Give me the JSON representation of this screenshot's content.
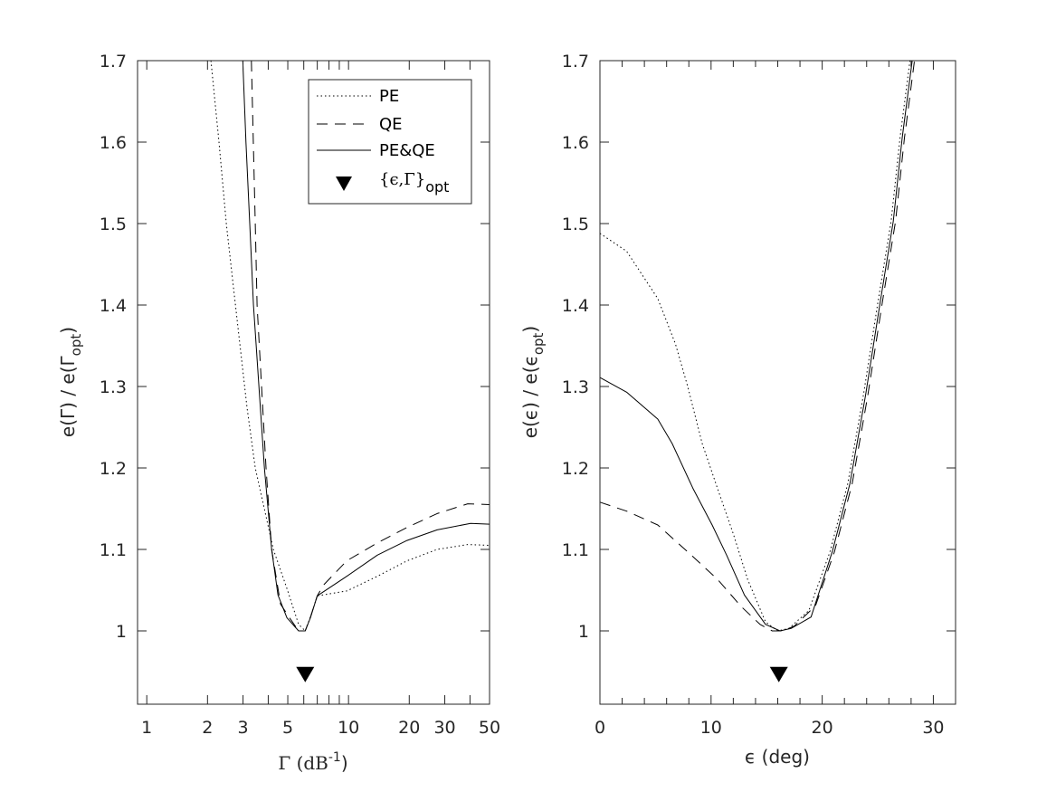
{
  "chart_data": [
    {
      "type": "line",
      "xscale": "log",
      "xlim": [
        0.9,
        50
      ],
      "ylim": [
        0.91,
        1.7
      ],
      "xticks": [
        1,
        2,
        3,
        5,
        10,
        20,
        30,
        50
      ],
      "xticklabels": [
        "1",
        "2",
        "3",
        "5",
        "10",
        "20",
        "30",
        "50"
      ],
      "xminor": [
        4,
        6,
        7,
        8,
        9,
        40
      ],
      "yticks": [
        1,
        1.1,
        1.2,
        1.3,
        1.4,
        1.5,
        1.6,
        1.7
      ],
      "yticklabels": [
        "1",
        "1.1",
        "1.2",
        "1.3",
        "1.4",
        "1.5",
        "1.6",
        "1.7"
      ],
      "xlabel": {
        "main": "Γ (dB",
        "sup": "-1",
        "end": ")"
      },
      "ylabel": {
        "main": "e(Γ) / e(Γ",
        "sub": "opt",
        "end": ")"
      },
      "grid": false,
      "legend": {
        "placement": "top-right",
        "entries": [
          {
            "label": "PE",
            "style": "dotted"
          },
          {
            "label": "QE",
            "style": "dashed"
          },
          {
            "label": "PE&QE",
            "style": "solid"
          },
          {
            "label_main": "{ϵ,Γ}",
            "label_sub": "opt",
            "style": "marker-down-triangle"
          }
        ]
      },
      "series": [
        {
          "name": "PE",
          "style": "dotted",
          "x": [
            2.08,
            2.28,
            2.48,
            2.75,
            3.14,
            3.45,
            4.24,
            4.95,
            5.66,
            6.1,
            6.5,
            7.0,
            9.8,
            13.9,
            19.5,
            27.5,
            39,
            50
          ],
          "y": [
            1.7,
            1.6,
            1.5,
            1.4,
            1.274,
            1.2,
            1.1,
            1.052,
            1.008,
            1.0,
            1.018,
            1.043,
            1.049,
            1.067,
            1.086,
            1.1,
            1.106,
            1.105
          ]
        },
        {
          "name": "QE",
          "style": "dashed",
          "x": [
            3.3,
            3.45,
            3.52,
            3.9,
            4.16,
            4.6,
            5.1,
            5.66,
            6.1,
            6.5,
            7.0,
            7.5,
            9.8,
            13.9,
            19.5,
            27.5,
            39,
            50
          ],
          "y": [
            1.7,
            1.5,
            1.4,
            1.2,
            1.1,
            1.033,
            1.016,
            1.0,
            1.0,
            1.018,
            1.043,
            1.056,
            1.086,
            1.108,
            1.127,
            1.144,
            1.156,
            1.155
          ]
        },
        {
          "name": "PE&QE",
          "style": "solid",
          "x": [
            2.99,
            3.1,
            3.24,
            3.38,
            3.83,
            4.16,
            4.47,
            4.95,
            5.66,
            6.1,
            6.47,
            7.0,
            9.8,
            13.9,
            19.5,
            27.5,
            40.3,
            50
          ],
          "y": [
            1.7,
            1.6,
            1.5,
            1.4,
            1.2,
            1.1,
            1.044,
            1.016,
            1.0,
            1.0,
            1.016,
            1.043,
            1.067,
            1.093,
            1.111,
            1.124,
            1.132,
            1.131
          ]
        }
      ],
      "optimum_marker": {
        "x": 6.1,
        "y": 0.947
      }
    },
    {
      "type": "line",
      "xlim": [
        0,
        32
      ],
      "ylim": [
        0.91,
        1.7
      ],
      "xticks": [
        0,
        10,
        20,
        30
      ],
      "xticklabels": [
        "0",
        "10",
        "20",
        "30"
      ],
      "xminor": [
        2,
        4,
        6,
        8,
        12,
        14,
        16,
        18,
        22,
        24,
        26,
        28
      ],
      "yticks": [
        1,
        1.1,
        1.2,
        1.3,
        1.4,
        1.5,
        1.6,
        1.7
      ],
      "yticklabels": [
        "1",
        "1.1",
        "1.2",
        "1.3",
        "1.4",
        "1.5",
        "1.6",
        "1.7"
      ],
      "xlabel": {
        "main": "ϵ (deg)"
      },
      "ylabel": {
        "main": "e(ϵ) / e(ϵ",
        "sub": "opt",
        "end": ")"
      },
      "grid": false,
      "series": [
        {
          "name": "PE",
          "style": "dotted",
          "x": [
            0,
            2.4,
            5.2,
            6.8,
            7.9,
            9.2,
            10.6,
            12,
            13.3,
            14.9,
            16,
            17,
            18.8,
            20.7,
            22.3,
            23.7,
            25.0,
            26.2,
            27.0,
            27.9
          ],
          "y": [
            1.488,
            1.466,
            1.408,
            1.352,
            1.3,
            1.23,
            1.174,
            1.119,
            1.063,
            1.011,
            1.0,
            1.003,
            1.025,
            1.097,
            1.181,
            1.289,
            1.402,
            1.503,
            1.605,
            1.7
          ]
        },
        {
          "name": "QE",
          "style": "dashed",
          "x": [
            0,
            2.4,
            5.2,
            7.9,
            10.6,
            12.7,
            14.4,
            15.5,
            16.5,
            17.5,
            19.4,
            21.1,
            22.7,
            24.1,
            25.4,
            26.6,
            27.4,
            28.3
          ],
          "y": [
            1.158,
            1.147,
            1.13,
            1.097,
            1.063,
            1.03,
            1.008,
            1.0,
            1.0,
            1.006,
            1.031,
            1.097,
            1.181,
            1.289,
            1.402,
            1.503,
            1.605,
            1.7
          ]
        },
        {
          "name": "PE&QE",
          "style": "solid",
          "x": [
            0,
            2.4,
            5.2,
            6.5,
            8.4,
            10.1,
            11.4,
            13.0,
            14.9,
            16.2,
            17.2,
            19.0,
            20.9,
            22.5,
            23.9,
            25.2,
            26.4,
            27.2,
            28.1
          ],
          "y": [
            1.311,
            1.293,
            1.26,
            1.23,
            1.174,
            1.13,
            1.093,
            1.044,
            1.008,
            1.0,
            1.003,
            1.017,
            1.097,
            1.181,
            1.289,
            1.402,
            1.503,
            1.605,
            1.7
          ]
        }
      ],
      "optimum_marker": {
        "x": 16.1,
        "y": 0.947
      }
    }
  ]
}
